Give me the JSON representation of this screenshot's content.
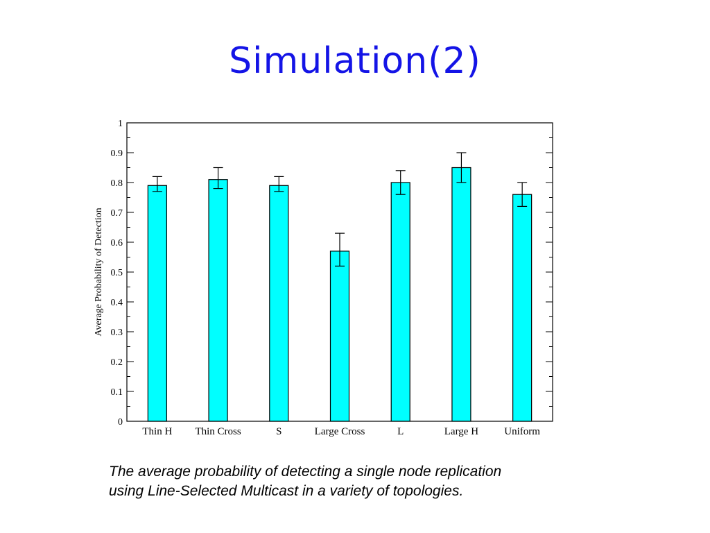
{
  "slide": {
    "title": "Simulation(2)",
    "caption_lines": [
      "The average probability of detecting a single node replication",
      "using Line-Selected Multicast in a variety of topologies."
    ]
  },
  "colors": {
    "title": "#1414e6",
    "bar_fill": "#00ffff",
    "bar_stroke": "#000000"
  },
  "chart_data": {
    "type": "bar",
    "title": "",
    "xlabel": "",
    "ylabel": "Average Probability of Detection",
    "ylim": [
      0,
      1
    ],
    "yticks": [
      "0",
      "0.1",
      "0.2",
      "0.3",
      "0.4",
      "0.5",
      "0.6",
      "0.7",
      "0.8",
      "0.9",
      "1"
    ],
    "categories": [
      "Thin H",
      "Thin Cross",
      "S",
      "Large Cross",
      "L",
      "Large H",
      "Uniform"
    ],
    "values": [
      0.79,
      0.81,
      0.79,
      0.57,
      0.8,
      0.85,
      0.76
    ],
    "error_bars": [
      {
        "low": 0.77,
        "high": 0.82
      },
      {
        "low": 0.78,
        "high": 0.85
      },
      {
        "low": 0.77,
        "high": 0.82
      },
      {
        "low": 0.52,
        "high": 0.63
      },
      {
        "low": 0.76,
        "high": 0.84
      },
      {
        "low": 0.8,
        "high": 0.9
      },
      {
        "low": 0.72,
        "high": 0.8
      }
    ],
    "grid": false,
    "legend": "none"
  }
}
